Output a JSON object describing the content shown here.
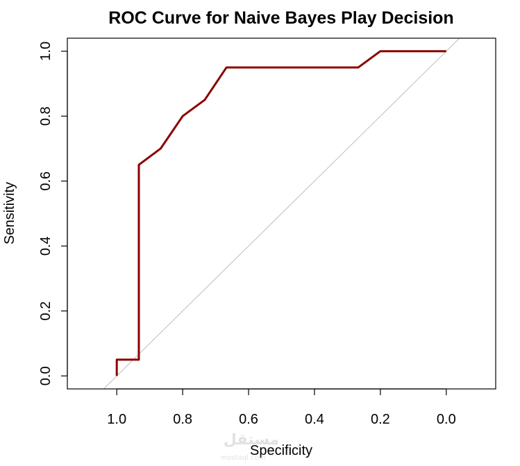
{
  "chart_data": {
    "type": "line",
    "title": "ROC Curve for Naive Bayes Play Decision",
    "xlabel": "Specificity",
    "ylabel": "Sensitivity",
    "x_reversed": true,
    "xlim": [
      1.15,
      -0.15
    ],
    "ylim": [
      -0.04,
      1.04
    ],
    "xticks": [
      1.0,
      0.8,
      0.6,
      0.4,
      0.2,
      0.0
    ],
    "xtick_labels": [
      "1.0",
      "0.8",
      "0.6",
      "0.4",
      "0.2",
      "0.0"
    ],
    "yticks": [
      0.0,
      0.2,
      0.4,
      0.6,
      0.8,
      1.0
    ],
    "ytick_labels": [
      "0.0",
      "0.2",
      "0.4",
      "0.6",
      "0.8",
      "1.0"
    ],
    "grid": false,
    "series": [
      {
        "color": "#8b0000",
        "x": [
          1.0,
          1.0,
          0.933,
          0.933,
          0.867,
          0.8,
          0.733,
          0.667,
          0.267,
          0.2,
          0.0
        ],
        "y": [
          0.0,
          0.05,
          0.05,
          0.65,
          0.7,
          0.8,
          0.85,
          0.95,
          0.95,
          1.0,
          1.0
        ]
      }
    ],
    "reference_line": {
      "color": "#bebebe",
      "from": [
        1,
        0
      ],
      "to": [
        0,
        1
      ]
    }
  },
  "watermark": {
    "arabic": "مستقل",
    "latin": "mostaql.com"
  }
}
